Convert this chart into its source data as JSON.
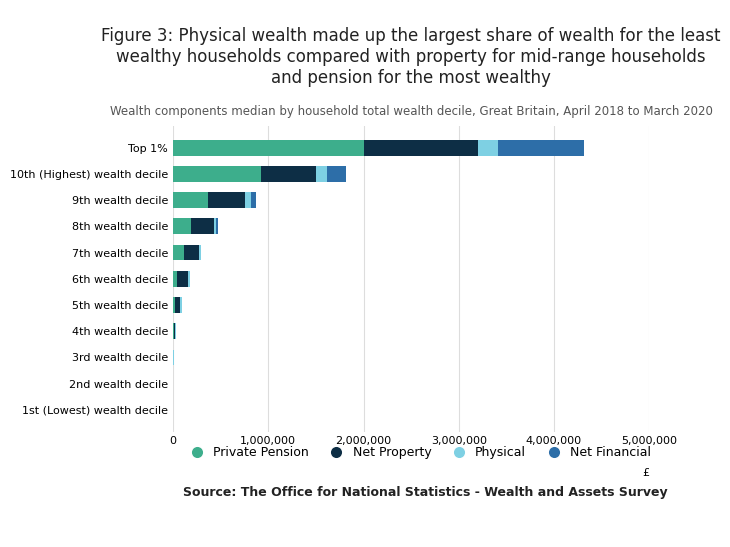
{
  "title": "Figure 3: Physical wealth made up the largest share of wealth for the least\nwealthy households compared with property for mid-range households\nand pension for the most wealthy",
  "subtitle": "Wealth components median by household total wealth decile, Great Britain, April 2018 to March 2020",
  "source": "Source: The Office for National Statistics - Wealth and Assets Survey",
  "xlabel": "£",
  "categories": [
    "1st (Lowest) wealth decile",
    "2nd wealth decile",
    "3rd wealth decile",
    "4th wealth decile",
    "5th wealth decile",
    "6th wealth decile",
    "7th wealth decile",
    "8th wealth decile",
    "9th wealth decile",
    "10th (Highest) wealth decile",
    "Top 1%"
  ],
  "series": {
    "Private Pension": [
      0,
      0,
      0,
      5000,
      25000,
      40000,
      110000,
      185000,
      370000,
      920000,
      2000000
    ],
    "Net Property": [
      0,
      0,
      0,
      10000,
      50000,
      120000,
      160000,
      240000,
      390000,
      580000,
      1200000
    ],
    "Physical": [
      3000,
      4000,
      10000,
      15000,
      18000,
      18000,
      22000,
      30000,
      60000,
      120000,
      215000
    ],
    "Net Financial": [
      0,
      0,
      0,
      0,
      0,
      0,
      5000,
      20000,
      55000,
      200000,
      900000
    ]
  },
  "colors": {
    "Private Pension": "#3dae8c",
    "Net Property": "#0d2e45",
    "Physical": "#7ed0e3",
    "Net Financial": "#2d6ea8"
  },
  "xlim": [
    0,
    5000000
  ],
  "xticks": [
    0,
    1000000,
    2000000,
    3000000,
    4000000,
    5000000
  ],
  "background_color": "#ffffff",
  "title_fontsize": 12,
  "subtitle_fontsize": 8.5,
  "legend_fontsize": 9,
  "tick_fontsize": 8,
  "bar_height": 0.6
}
